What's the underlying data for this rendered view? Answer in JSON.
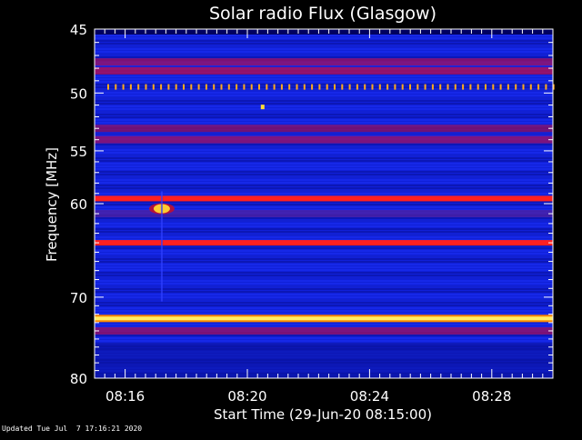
{
  "chart_data": {
    "type": "heatmap",
    "title": "Solar radio Flux (Glasgow)",
    "xlabel": "Start Time (29-Jun-20 08:15:00)",
    "ylabel": "Frequency [MHz]",
    "x_range_minutes": [
      0,
      15
    ],
    "x_ticks": [
      {
        "label": "08:16",
        "minute": 1
      },
      {
        "label": "08:20",
        "minute": 5
      },
      {
        "label": "08:24",
        "minute": 9
      },
      {
        "label": "08:28",
        "minute": 13
      }
    ],
    "y_scale": "log",
    "ylim": [
      45,
      80
    ],
    "y_ticks": [
      45,
      50,
      55,
      60,
      70,
      80
    ],
    "y_tick_labels": [
      "45",
      "50",
      "55",
      "60",
      "70",
      "80"
    ],
    "background_color": "#1020d8",
    "strong_bands": [
      {
        "freq_mhz": 59.5,
        "color": "#ff2020",
        "level": "strong"
      },
      {
        "freq_mhz": 64.0,
        "color": "#ff2020",
        "level": "strong"
      },
      {
        "freq_mhz": 72.5,
        "color": "#ffee66",
        "level": "very strong"
      }
    ],
    "moderate_bands": [
      {
        "freq_mhz": 47.5,
        "color": "#a01060"
      },
      {
        "freq_mhz": 48.2,
        "color": "#c01050"
      },
      {
        "freq_mhz": 53.0,
        "color": "#901060"
      },
      {
        "freq_mhz": 54.0,
        "color": "#a01060"
      },
      {
        "freq_mhz": 61.0,
        "color": "#5020a0"
      },
      {
        "freq_mhz": 74.0,
        "color": "#a01060"
      }
    ],
    "periodic_spikes": {
      "freq_mhz": 49.5,
      "color": "#ffaa20"
    },
    "burst": {
      "minute": 2.2,
      "freq_mhz": 60.5,
      "color": "#ffcc30"
    },
    "point_feature": {
      "minute": 5.5,
      "freq_mhz": 51.2,
      "color": "#ffdd33"
    }
  },
  "footer": {
    "updated": "Updated Tue Jul  7 17:16:21 2020"
  }
}
